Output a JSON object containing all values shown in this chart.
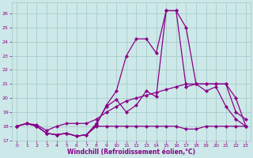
{
  "xlabel": "Windchill (Refroidissement éolien,°C)",
  "x_ticks": [
    0,
    1,
    2,
    3,
    4,
    5,
    6,
    7,
    8,
    9,
    10,
    11,
    12,
    13,
    14,
    15,
    16,
    17,
    18,
    19,
    20,
    21,
    22,
    23
  ],
  "ylim": [
    17,
    26.8
  ],
  "xlim": [
    -0.5,
    23.5
  ],
  "yticks": [
    17,
    18,
    19,
    20,
    21,
    22,
    23,
    24,
    25,
    26
  ],
  "bg_color": "#cde8e8",
  "grid_color": "#a8cccc",
  "line_color": "#880088",
  "line1_y": [
    18.0,
    18.2,
    18.0,
    17.5,
    17.4,
    17.5,
    17.3,
    17.4,
    18.0,
    18.0,
    18.0,
    18.0,
    18.0,
    18.0,
    18.0,
    18.0,
    18.0,
    17.8,
    17.8,
    18.0,
    18.0,
    18.0,
    18.0,
    18.0
  ],
  "line2_y": [
    18.0,
    18.2,
    18.0,
    17.5,
    17.4,
    17.5,
    17.3,
    17.4,
    18.2,
    19.4,
    19.9,
    19.0,
    19.5,
    20.5,
    20.1,
    26.2,
    26.2,
    20.8,
    21.0,
    20.5,
    20.8,
    19.4,
    18.5,
    18.0
  ],
  "line3_y": [
    18.0,
    18.2,
    18.0,
    17.5,
    17.4,
    17.5,
    17.3,
    17.4,
    18.1,
    19.5,
    20.5,
    23.0,
    24.2,
    24.2,
    23.2,
    26.2,
    26.2,
    25.0,
    21.0,
    21.0,
    21.0,
    21.0,
    19.0,
    18.5
  ],
  "line_diag_y": [
    18.0,
    18.2,
    18.1,
    17.7,
    18.0,
    18.2,
    18.2,
    18.2,
    18.5,
    19.0,
    19.4,
    19.8,
    20.0,
    20.2,
    20.4,
    20.6,
    20.8,
    21.0,
    21.0,
    21.0,
    21.0,
    21.0,
    20.0,
    18.0
  ]
}
